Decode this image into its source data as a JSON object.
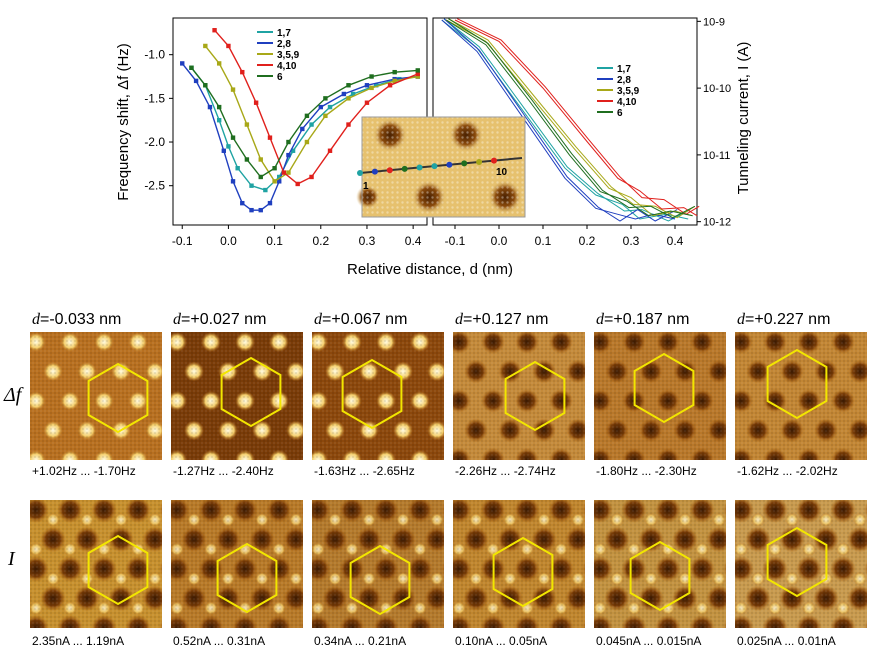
{
  "chart_data": [
    {
      "type": "line",
      "panel": "frequency-shift",
      "xlabel": "Relative distance, d (nm)",
      "ylabel": "Frequency shift, Δf (Hz)",
      "xlim": [
        -0.12,
        0.43
      ],
      "ylim": [
        -2.95,
        -0.58
      ],
      "xticks": [
        "-0.1",
        "0.0",
        "0.1",
        "0.2",
        "0.3",
        "0.4"
      ],
      "yticks": [
        "-1.0",
        "-1.5",
        "-2.0",
        "-2.5"
      ],
      "series": [
        {
          "name": "1,7",
          "color": "#1fa3a3",
          "x": [
            -0.08,
            -0.05,
            -0.02,
            0.0,
            0.02,
            0.05,
            0.08,
            0.11,
            0.14,
            0.18,
            0.22,
            0.27,
            0.32,
            0.37,
            0.41
          ],
          "y": [
            -1.15,
            -1.35,
            -1.75,
            -2.05,
            -2.3,
            -2.5,
            -2.55,
            -2.4,
            -2.1,
            -1.8,
            -1.6,
            -1.45,
            -1.35,
            -1.28,
            -1.25
          ]
        },
        {
          "name": "2,8",
          "color": "#1f3fbf",
          "x": [
            -0.1,
            -0.07,
            -0.04,
            -0.01,
            0.01,
            0.03,
            0.05,
            0.07,
            0.09,
            0.11,
            0.13,
            0.16,
            0.2,
            0.25,
            0.3,
            0.36,
            0.41
          ],
          "y": [
            -1.1,
            -1.3,
            -1.6,
            -2.1,
            -2.45,
            -2.7,
            -2.78,
            -2.78,
            -2.7,
            -2.45,
            -2.15,
            -1.85,
            -1.6,
            -1.45,
            -1.35,
            -1.28,
            -1.25
          ]
        },
        {
          "name": "3,5,9",
          "color": "#a8a818",
          "x": [
            -0.05,
            -0.02,
            0.01,
            0.04,
            0.07,
            0.1,
            0.13,
            0.17,
            0.21,
            0.26,
            0.31,
            0.36,
            0.41
          ],
          "y": [
            -0.9,
            -1.1,
            -1.4,
            -1.8,
            -2.2,
            -2.45,
            -2.35,
            -2.0,
            -1.7,
            -1.5,
            -1.38,
            -1.3,
            -1.25
          ]
        },
        {
          "name": "4,10",
          "color": "#e0201c",
          "x": [
            -0.03,
            0.0,
            0.03,
            0.06,
            0.09,
            0.12,
            0.15,
            0.18,
            0.22,
            0.26,
            0.3,
            0.35,
            0.41
          ],
          "y": [
            -0.72,
            -0.9,
            -1.2,
            -1.55,
            -1.95,
            -2.35,
            -2.48,
            -2.4,
            -2.1,
            -1.8,
            -1.55,
            -1.35,
            -1.22
          ]
        },
        {
          "name": "6",
          "color": "#1f6e1f",
          "x": [
            -0.08,
            -0.05,
            -0.02,
            0.01,
            0.04,
            0.07,
            0.1,
            0.13,
            0.17,
            0.21,
            0.26,
            0.31,
            0.36,
            0.41
          ],
          "y": [
            -1.15,
            -1.35,
            -1.6,
            -1.95,
            -2.2,
            -2.4,
            -2.3,
            -2.0,
            -1.7,
            -1.5,
            -1.35,
            -1.25,
            -1.2,
            -1.18
          ]
        }
      ]
    },
    {
      "type": "line",
      "panel": "tunneling-current",
      "xlabel": "Relative distance, d (nm)",
      "ylabel": "Tunneling current, I (A)",
      "yscale": "log",
      "xlim": [
        -0.15,
        0.45
      ],
      "ylim_exp": [
        -12.05,
        -8.95
      ],
      "xticks": [
        "-0.1",
        "0.0",
        "0.1",
        "0.2",
        "0.3",
        "0.4"
      ],
      "yticks": [
        "10-9",
        "10-10",
        "10-11",
        "10-12"
      ],
      "series": [
        {
          "name": "1,7",
          "color": "#1fa3a3",
          "x": [
            -0.13,
            -0.05,
            0.05,
            0.15,
            0.22,
            0.28,
            0.32,
            0.38,
            0.43
          ],
          "log10I": [
            -8.98,
            -9.4,
            -10.3,
            -11.2,
            -11.6,
            -11.8,
            -11.9,
            -11.95,
            -11.9
          ]
        },
        {
          "name": "2,8",
          "color": "#1f3fbf",
          "x": [
            -0.13,
            -0.05,
            0.05,
            0.15,
            0.22,
            0.27,
            0.31,
            0.35,
            0.4
          ],
          "log10I": [
            -8.98,
            -9.45,
            -10.4,
            -11.35,
            -11.8,
            -11.95,
            -11.9,
            -11.95,
            -11.9
          ]
        },
        {
          "name": "3,5,9",
          "color": "#a8a818",
          "x": [
            -0.12,
            -0.03,
            0.07,
            0.17,
            0.25,
            0.3,
            0.35,
            0.4,
            0.44
          ],
          "log10I": [
            -8.98,
            -9.3,
            -10.1,
            -10.9,
            -11.5,
            -11.7,
            -11.85,
            -11.9,
            -11.85
          ]
        },
        {
          "name": "4,10",
          "color": "#e0201c",
          "x": [
            -0.1,
            0.0,
            0.1,
            0.2,
            0.27,
            0.32,
            0.37,
            0.42,
            0.45
          ],
          "log10I": [
            -8.98,
            -9.3,
            -10.0,
            -10.8,
            -11.35,
            -11.6,
            -11.75,
            -11.85,
            -11.85
          ]
        },
        {
          "name": "6",
          "color": "#1f6e1f",
          "x": [
            -0.12,
            -0.03,
            0.07,
            0.16,
            0.23,
            0.29,
            0.34,
            0.39,
            0.44
          ],
          "log10I": [
            -8.98,
            -9.35,
            -10.2,
            -11.0,
            -11.55,
            -11.75,
            -11.85,
            -11.9,
            -11.85
          ]
        }
      ]
    }
  ],
  "inset": {
    "label_start": "1",
    "label_end": "10"
  },
  "legend": [
    "1,7",
    "2,8",
    "3,5,9",
    "4,10",
    "6"
  ],
  "images": {
    "row_df_label": "Δf",
    "row_i_label": "I",
    "d_prefix": "d",
    "tiles": [
      {
        "d": "=-0.033 nm",
        "df_range": "+1.02Hz ... -1.70Hz",
        "i_range": "2.35nA ... 1.19nA"
      },
      {
        "d": "=+0.027 nm",
        "df_range": "-1.27Hz ... -2.40Hz",
        "i_range": "0.52nA ... 0.31nA"
      },
      {
        "d": "=+0.067 nm",
        "df_range": "-1.63Hz ... -2.65Hz",
        "i_range": "0.34nA ... 0.21nA"
      },
      {
        "d": "=+0.127 nm",
        "df_range": "-2.26Hz ... -2.74Hz",
        "i_range": "0.10nA ... 0.05nA"
      },
      {
        "d": "=+0.187 nm",
        "df_range": "-1.80Hz ... -2.30Hz",
        "i_range": "0.045nA ... 0.015nA"
      },
      {
        "d": "=+0.227 nm",
        "df_range": "-1.62Hz ... -2.02Hz",
        "i_range": "0.025nA ... 0.01nA"
      }
    ]
  },
  "colors": {
    "afm_dark": "#5a2c05",
    "afm_mid": "#b56a12",
    "afm_light": "#fff2b8",
    "hexagon": "#f2e600"
  }
}
